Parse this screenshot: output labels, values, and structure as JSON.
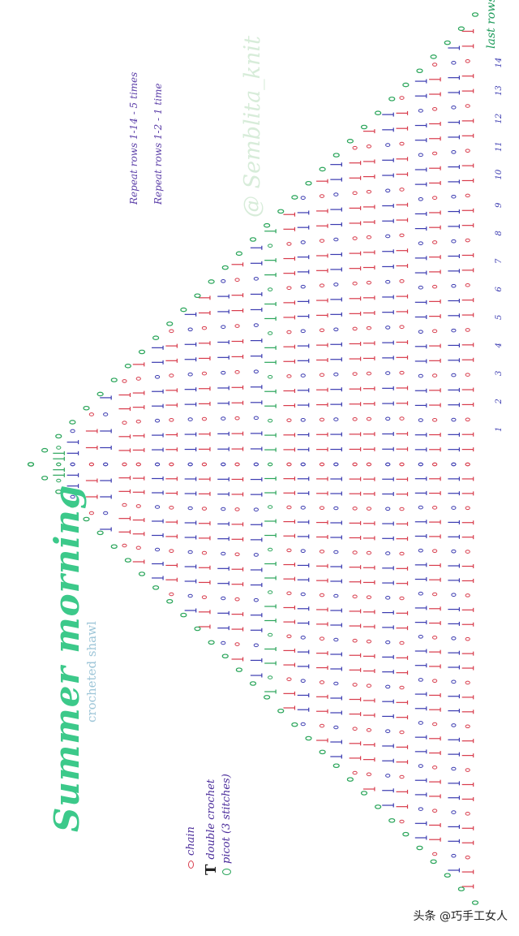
{
  "title": "Summer morning",
  "subtitle": "crocheted shawl",
  "watermark": "@ Semblita_knit",
  "repeat_notes": [
    "Repeat rows 1-14 - 5 times",
    "Repeat rows 1-2 - 1 time"
  ],
  "last_rows_label": "last rows",
  "legend": [
    {
      "symbol": "chain-symbol",
      "label": "chain"
    },
    {
      "symbol": "double-crochet-symbol",
      "label": "double crochet"
    },
    {
      "symbol": "picot-symbol",
      "label": "picot (3 stitches)"
    }
  ],
  "row_numbers": [
    "1",
    "2",
    "3",
    "4",
    "5",
    "6",
    "7",
    "8",
    "9",
    "10",
    "11",
    "12",
    "13",
    "14"
  ],
  "footer_text": "头条 @巧手工女人",
  "colors": {
    "red": "#d83b4b",
    "blue": "#3a3ab0",
    "green": "#2aa55a",
    "dark": "#222222",
    "title_green": "#3cc98a"
  }
}
